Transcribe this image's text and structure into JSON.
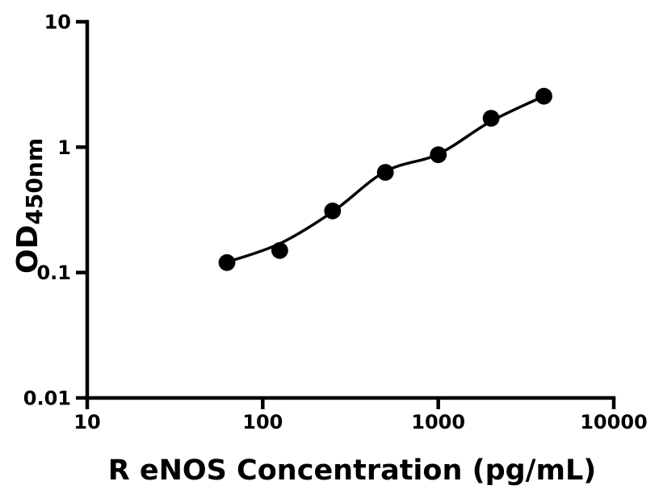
{
  "figure": {
    "background_color": "#ffffff",
    "ink_color": "#000000"
  },
  "chart_data": {
    "type": "scatter",
    "title": "",
    "xlabel": "R eNOS Concentration (pg/mL)",
    "ylabel": "OD",
    "ylabel_subscript": "450nm",
    "x_scale": "log",
    "y_scale": "log",
    "xlim": [
      10,
      10000
    ],
    "ylim": [
      0.01,
      10
    ],
    "x_ticks": [
      10,
      100,
      1000,
      10000
    ],
    "x_tick_labels": [
      "10",
      "100",
      "1000",
      "10000"
    ],
    "y_ticks": [
      10,
      1,
      0.1,
      0.01
    ],
    "y_tick_labels": [
      "10",
      "1",
      "0.1",
      "0.01"
    ],
    "grid": false,
    "legend": null,
    "series": [
      {
        "name": "standard-points",
        "marker": "circle",
        "color": "#000000",
        "x": [
          62.5,
          125,
          250,
          500,
          1000,
          2000,
          4000
        ],
        "y": [
          0.12,
          0.15,
          0.31,
          0.63,
          0.87,
          1.7,
          2.55
        ]
      }
    ],
    "fit_curve": {
      "name": "fitted-curve",
      "color": "#000000",
      "x": [
        62.5,
        125,
        250,
        500,
        1000,
        2000,
        4000
      ],
      "y": [
        0.121,
        0.17,
        0.305,
        0.64,
        0.88,
        1.61,
        2.55
      ]
    }
  }
}
